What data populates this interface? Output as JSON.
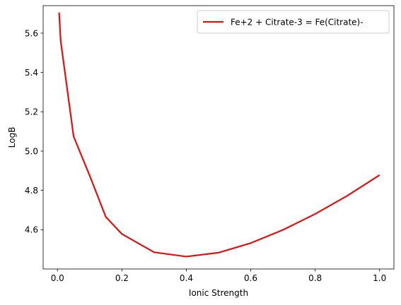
{
  "chart_data": {
    "type": "line",
    "xlabel": "Ionic Strength",
    "ylabel": "LogB",
    "xlim": [
      -0.0445,
      1.0445
    ],
    "ylim": [
      4.4,
      5.74
    ],
    "xticks": [
      0.0,
      0.2,
      0.4,
      0.6,
      0.8,
      1.0
    ],
    "xtick_labels": [
      "0.0",
      "0.2",
      "0.4",
      "0.6",
      "0.8",
      "1.0"
    ],
    "yticks": [
      4.6,
      4.8,
      5.0,
      5.2,
      5.4,
      5.6
    ],
    "ytick_labels": [
      "4.6",
      "4.8",
      "5.0",
      "5.2",
      "5.4",
      "5.6"
    ],
    "grid": false,
    "legend_position": "top-right",
    "series": [
      {
        "name": "Fe+2 + Citrate-3 = Fe(Citrate)-",
        "color": "#e01010",
        "x": [
          0.005,
          0.01,
          0.05,
          0.1,
          0.15,
          0.2,
          0.3,
          0.4,
          0.5,
          0.6,
          0.7,
          0.8,
          0.9,
          1.0
        ],
        "y": [
          5.705,
          5.56,
          5.075,
          4.875,
          4.665,
          4.578,
          4.485,
          4.463,
          4.483,
          4.532,
          4.599,
          4.68,
          4.773,
          4.878
        ]
      }
    ]
  }
}
